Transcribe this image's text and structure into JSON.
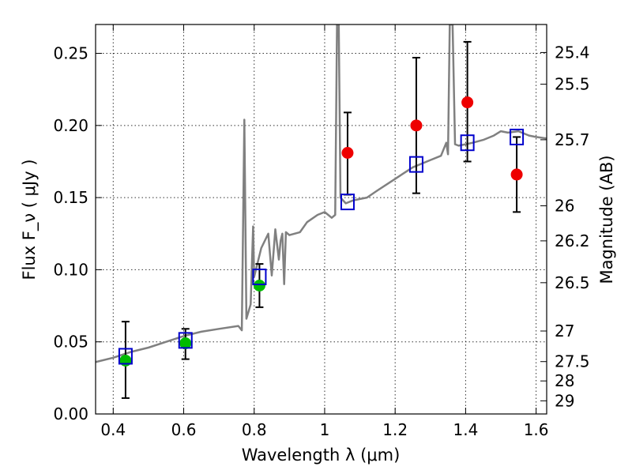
{
  "chart_data": {
    "type": "scatter",
    "xlabel": "Wavelength  λ (μm)",
    "ylabel": "Flux  F_ν  ( μJy )",
    "ylabel_right": "Magnitude (AB)",
    "xlim": [
      0.35,
      1.63
    ],
    "ylim": [
      0.0,
      0.27
    ],
    "grid": true,
    "x_ticks": [
      0.4,
      0.6,
      0.8,
      1.0,
      1.2,
      1.4,
      1.6
    ],
    "x_tick_labels": [
      "0.4",
      "0.6",
      "0.8",
      "1",
      "1.2",
      "1.4",
      "1.6"
    ],
    "y_ticks": [
      0.0,
      0.05,
      0.1,
      0.15,
      0.2,
      0.25
    ],
    "y_tick_labels": [
      "0.00",
      "0.05",
      "0.10",
      "0.15",
      "0.20",
      "0.25"
    ],
    "right_ticks": [
      {
        "label": "25.4",
        "flux": 0.2506
      },
      {
        "label": "25.5",
        "flux": 0.2286
      },
      {
        "label": "25.7",
        "flux": 0.1901
      },
      {
        "label": "26",
        "flux": 0.1443
      },
      {
        "label": "26.2",
        "flux": 0.12
      },
      {
        "label": "26.5",
        "flux": 0.091
      },
      {
        "label": "27",
        "flux": 0.0575
      },
      {
        "label": "27.5",
        "flux": 0.0363
      },
      {
        "label": "28",
        "flux": 0.0229
      },
      {
        "label": "29",
        "flux": 0.0091
      }
    ],
    "model_spectrum": {
      "color": "#808080",
      "points": [
        [
          0.35,
          0.036
        ],
        [
          0.4,
          0.039
        ],
        [
          0.45,
          0.043
        ],
        [
          0.5,
          0.046
        ],
        [
          0.55,
          0.05
        ],
        [
          0.6,
          0.054
        ],
        [
          0.65,
          0.057
        ],
        [
          0.7,
          0.059
        ],
        [
          0.755,
          0.061
        ],
        [
          0.765,
          0.058
        ],
        [
          0.772,
          0.204
        ],
        [
          0.778,
          0.066
        ],
        [
          0.79,
          0.076
        ],
        [
          0.797,
          0.13
        ],
        [
          0.8,
          0.095
        ],
        [
          0.82,
          0.115
        ],
        [
          0.84,
          0.125
        ],
        [
          0.85,
          0.096
        ],
        [
          0.86,
          0.128
        ],
        [
          0.87,
          0.107
        ],
        [
          0.875,
          0.12
        ],
        [
          0.88,
          0.125
        ],
        [
          0.885,
          0.09
        ],
        [
          0.89,
          0.126
        ],
        [
          0.9,
          0.124
        ],
        [
          0.93,
          0.126
        ],
        [
          0.95,
          0.133
        ],
        [
          0.98,
          0.138
        ],
        [
          1.0,
          0.14
        ],
        [
          1.02,
          0.136
        ],
        [
          1.03,
          0.138
        ],
        [
          1.035,
          0.27
        ],
        [
          1.04,
          0.27
        ],
        [
          1.045,
          0.15
        ],
        [
          1.06,
          0.146
        ],
        [
          1.08,
          0.148
        ],
        [
          1.1,
          0.149
        ],
        [
          1.12,
          0.15
        ],
        [
          1.15,
          0.155
        ],
        [
          1.2,
          0.163
        ],
        [
          1.25,
          0.171
        ],
        [
          1.3,
          0.176
        ],
        [
          1.33,
          0.179
        ],
        [
          1.345,
          0.188
        ],
        [
          1.35,
          0.18
        ],
        [
          1.355,
          0.27
        ],
        [
          1.363,
          0.27
        ],
        [
          1.37,
          0.187
        ],
        [
          1.38,
          0.186
        ],
        [
          1.4,
          0.187
        ],
        [
          1.42,
          0.188
        ],
        [
          1.45,
          0.19
        ],
        [
          1.48,
          0.193
        ],
        [
          1.5,
          0.196
        ],
        [
          1.52,
          0.195
        ],
        [
          1.55,
          0.196
        ],
        [
          1.58,
          0.193
        ],
        [
          1.6,
          0.192
        ],
        [
          1.63,
          0.191
        ]
      ]
    },
    "series": [
      {
        "marker": "circle",
        "color": "#00bb00",
        "points": [
          {
            "x": 0.435,
            "y": 0.037,
            "yerr_low": 0.026,
            "yerr_high": 0.027
          },
          {
            "x": 0.605,
            "y": 0.049,
            "yerr_low": 0.011,
            "yerr_high": 0.01
          },
          {
            "x": 0.815,
            "y": 0.089,
            "yerr_low": 0.015,
            "yerr_high": 0.015
          }
        ]
      },
      {
        "marker": "circle",
        "color": "#ee0000",
        "points": [
          {
            "x": 1.065,
            "y": 0.181,
            "yerr_low": 0.029,
            "yerr_high": 0.028
          },
          {
            "x": 1.26,
            "y": 0.2,
            "yerr_low": 0.047,
            "yerr_high": 0.047
          },
          {
            "x": 1.405,
            "y": 0.216,
            "yerr_low": 0.041,
            "yerr_high": 0.042
          },
          {
            "x": 1.545,
            "y": 0.166,
            "yerr_low": 0.026,
            "yerr_high": 0.026
          }
        ]
      },
      {
        "marker": "square",
        "color": "#0000cc",
        "points": [
          {
            "x": 0.435,
            "y": 0.04
          },
          {
            "x": 0.605,
            "y": 0.051
          },
          {
            "x": 0.815,
            "y": 0.095
          },
          {
            "x": 1.065,
            "y": 0.147
          },
          {
            "x": 1.26,
            "y": 0.173
          },
          {
            "x": 1.405,
            "y": 0.188
          },
          {
            "x": 1.545,
            "y": 0.192
          }
        ]
      }
    ]
  }
}
